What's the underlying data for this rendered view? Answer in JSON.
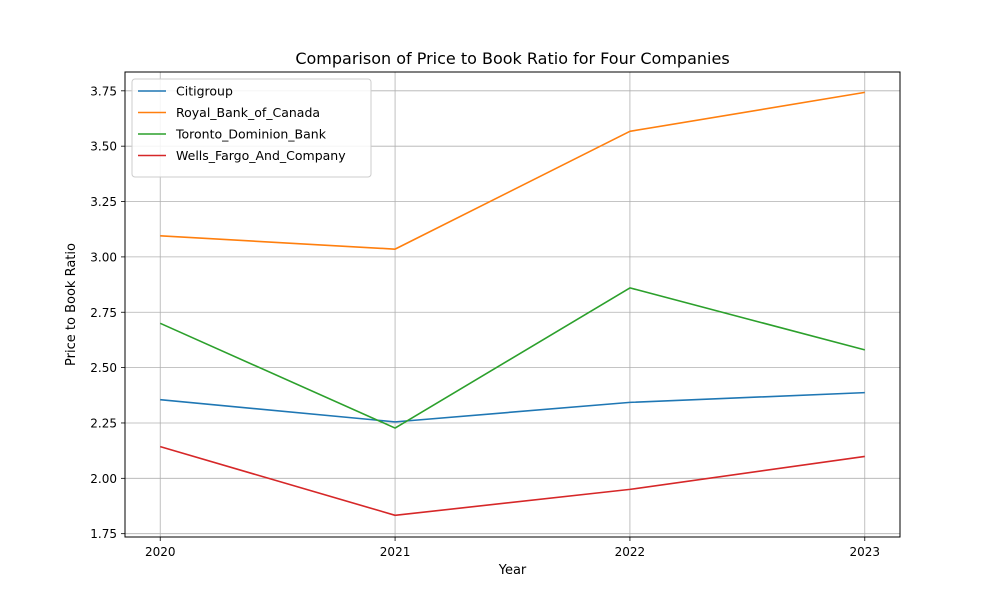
{
  "chart_data": {
    "type": "line",
    "title": "Comparison of Price to Book Ratio for Four Companies",
    "xlabel": "Year",
    "ylabel": "Price to Book Ratio",
    "x": [
      "2020",
      "2021",
      "2022",
      "2023"
    ],
    "xlim": [
      2019.85,
      2023.15
    ],
    "ylim": [
      1.735,
      3.835
    ],
    "yticks": [
      "1.75",
      "2.00",
      "2.25",
      "2.50",
      "2.75",
      "3.00",
      "3.25",
      "3.50",
      "3.75"
    ],
    "grid": true,
    "legend_position": "top-left",
    "series": [
      {
        "name": "Citigroup",
        "color": "#1f77b4",
        "values": [
          2.355,
          2.255,
          2.343,
          2.387
        ]
      },
      {
        "name": "Royal_Bank_of_Canada",
        "color": "#ff7f0e",
        "values": [
          3.095,
          3.035,
          3.567,
          3.743
        ]
      },
      {
        "name": "Toronto_Dominion_Bank",
        "color": "#2ca02c",
        "values": [
          2.7,
          2.227,
          2.86,
          2.58
        ]
      },
      {
        "name": "Wells_Fargo_And_Company",
        "color": "#d62728",
        "values": [
          2.143,
          1.833,
          1.95,
          2.099
        ]
      }
    ]
  }
}
